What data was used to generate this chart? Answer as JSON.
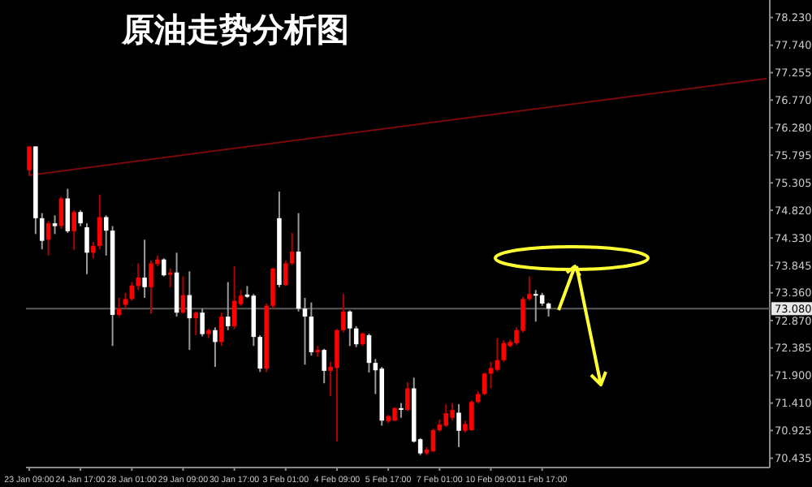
{
  "chart_data": {
    "type": "candlestick",
    "title": "原油走势分析图",
    "categories": [
      "23 Jan 09:00",
      null,
      null,
      null,
      null,
      null,
      null,
      null,
      "24 Jan 17:00",
      null,
      null,
      null,
      null,
      null,
      null,
      null,
      "28 Jan 01:00",
      null,
      null,
      null,
      null,
      null,
      null,
      null,
      "29 Jan 09:00",
      null,
      null,
      null,
      null,
      null,
      null,
      null,
      "30 Jan 17:00",
      null,
      null,
      null,
      null,
      null,
      null,
      null,
      "3 Feb 01:00",
      null,
      null,
      null,
      null,
      null,
      null,
      null,
      "4 Feb 09:00",
      null,
      null,
      null,
      null,
      null,
      null,
      null,
      "5 Feb 17:00",
      null,
      null,
      null,
      null,
      null,
      null,
      null,
      "7 Feb 01:00",
      null,
      null,
      null,
      null,
      null,
      null,
      null,
      "10 Feb 09:00",
      null,
      null,
      null,
      null,
      null,
      null,
      null,
      "11 Feb 17:00",
      null,
      null,
      null,
      null,
      null,
      null,
      null,
      null,
      null,
      null,
      null,
      null,
      null,
      null,
      null,
      null,
      null,
      null,
      null,
      null,
      null,
      null,
      null,
      null,
      null,
      null,
      null,
      null,
      null,
      null,
      null,
      null,
      null,
      null,
      null
    ],
    "ohlc": [
      [
        75.53,
        75.95,
        75.43,
        75.95
      ],
      [
        75.95,
        75.95,
        74.4,
        74.68
      ],
      [
        74.68,
        74.77,
        74.13,
        74.28
      ],
      [
        74.3,
        74.63,
        74.02,
        74.59
      ],
      [
        74.59,
        74.73,
        74.4,
        74.54
      ],
      [
        74.54,
        75.06,
        74.49,
        75.03
      ],
      [
        75.03,
        75.2,
        74.42,
        74.45
      ],
      [
        74.45,
        74.82,
        74.12,
        74.79
      ],
      [
        74.79,
        74.82,
        74.54,
        74.59
      ],
      [
        74.52,
        74.59,
        73.69,
        74.07
      ],
      [
        74.07,
        74.26,
        73.97,
        74.19
      ],
      [
        74.19,
        75.1,
        74.13,
        74.7
      ],
      [
        74.7,
        74.73,
        74.02,
        74.46
      ],
      [
        74.46,
        74.54,
        72.42,
        72.97
      ],
      [
        72.97,
        73.27,
        72.94,
        73.08
      ],
      [
        73.15,
        73.36,
        73.08,
        73.25
      ],
      [
        73.25,
        73.55,
        73.22,
        73.49
      ],
      [
        73.48,
        73.88,
        73.41,
        73.63
      ],
      [
        73.63,
        74.3,
        73.27,
        73.46
      ],
      [
        73.46,
        73.93,
        72.99,
        73.88
      ],
      [
        73.87,
        74.02,
        73.83,
        73.95
      ],
      [
        73.95,
        73.97,
        73.65,
        73.67
      ],
      [
        73.68,
        73.79,
        73.46,
        73.72
      ],
      [
        73.72,
        74.07,
        72.94,
        73.01
      ],
      [
        73.01,
        73.65,
        72.99,
        73.32
      ],
      [
        73.32,
        73.74,
        72.35,
        72.91
      ],
      [
        72.91,
        73.03,
        72.61,
        73.01
      ],
      [
        73.01,
        73.08,
        72.59,
        72.63
      ],
      [
        72.63,
        72.72,
        72.56,
        72.7
      ],
      [
        72.7,
        72.75,
        72.05,
        72.49
      ],
      [
        72.49,
        73.01,
        72.42,
        72.94
      ],
      [
        72.94,
        73.55,
        72.7,
        72.77
      ],
      [
        72.77,
        73.83,
        72.72,
        73.22
      ],
      [
        73.16,
        73.41,
        73.13,
        73.31
      ],
      [
        73.33,
        73.48,
        73.27,
        73.29
      ],
      [
        73.31,
        73.34,
        72.42,
        72.58
      ],
      [
        72.58,
        72.61,
        71.96,
        72.02
      ],
      [
        72.02,
        73.17,
        71.96,
        73.13
      ],
      [
        73.13,
        73.81,
        73.08,
        73.79
      ],
      [
        74.68,
        75.15,
        73.46,
        73.5
      ],
      [
        73.5,
        73.93,
        73.48,
        73.88
      ],
      [
        73.88,
        74.42,
        73.85,
        74.09
      ],
      [
        74.09,
        74.77,
        73.03,
        73.08
      ],
      [
        73.08,
        73.27,
        72.09,
        72.94
      ],
      [
        72.94,
        73.19,
        72.25,
        72.31
      ],
      [
        72.31,
        72.42,
        72.23,
        72.35
      ],
      [
        72.35,
        72.37,
        71.76,
        71.98
      ],
      [
        71.98,
        72.14,
        71.53,
        72.05
      ],
      [
        72.03,
        72.72,
        70.73,
        72.7
      ],
      [
        72.7,
        73.34,
        72.66,
        73.03
      ],
      [
        73.03,
        73.05,
        72.42,
        72.73
      ],
      [
        72.73,
        72.77,
        72.4,
        72.45
      ],
      [
        72.45,
        72.66,
        72.42,
        72.64
      ],
      [
        72.61,
        72.64,
        71.95,
        72.12
      ],
      [
        72.12,
        72.19,
        71.57,
        71.99
      ],
      [
        72.02,
        72.05,
        71.01,
        71.1
      ],
      [
        71.09,
        71.2,
        71.06,
        71.18
      ],
      [
        71.1,
        71.34,
        71.09,
        71.32
      ],
      [
        71.32,
        71.41,
        71.15,
        71.29
      ],
      [
        71.29,
        71.78,
        71.27,
        71.67
      ],
      [
        71.67,
        71.86,
        70.71,
        70.73
      ],
      [
        70.77,
        70.79,
        70.49,
        70.52
      ],
      [
        70.52,
        70.63,
        70.49,
        70.59
      ],
      [
        70.56,
        70.96,
        70.54,
        70.93
      ],
      [
        70.93,
        71.12,
        70.9,
        71.03
      ],
      [
        71.01,
        71.39,
        70.99,
        71.23
      ],
      [
        71.15,
        71.41,
        71.1,
        71.29
      ],
      [
        71.24,
        71.39,
        70.63,
        70.92
      ],
      [
        70.92,
        71.1,
        70.89,
        71.04
      ],
      [
        70.93,
        71.46,
        70.92,
        71.43
      ],
      [
        71.43,
        71.62,
        71.4,
        71.57
      ],
      [
        71.57,
        71.95,
        71.55,
        71.93
      ],
      [
        71.93,
        72.14,
        71.67,
        72.03
      ],
      [
        72.0,
        72.56,
        71.97,
        72.17
      ],
      [
        72.17,
        72.52,
        72.14,
        72.47
      ],
      [
        72.42,
        72.53,
        72.4,
        72.49
      ],
      [
        72.47,
        72.75,
        72.44,
        72.7
      ],
      [
        72.69,
        73.29,
        72.66,
        73.25
      ],
      [
        73.25,
        73.65,
        73.22,
        73.34
      ],
      [
        73.34,
        73.41,
        72.85,
        73.31
      ],
      [
        73.32,
        73.36,
        73.13,
        73.17
      ],
      [
        73.17,
        73.19,
        72.94,
        73.08
      ],
      null,
      null,
      null,
      null,
      null,
      null,
      null,
      null,
      null,
      null,
      null,
      null,
      null,
      null,
      null,
      null,
      null,
      null,
      null,
      null,
      null,
      null,
      null,
      null,
      null,
      null,
      null,
      null,
      null,
      null,
      null,
      null,
      null,
      null
    ],
    "colors": [
      "#ff0000",
      "#ffffff",
      "#ffffff",
      "#ff0000",
      "#ffffff",
      "#ff0000",
      "#ffffff",
      "#ff0000",
      "#ffffff",
      "#ffffff",
      "#ff0000",
      "#ff0000",
      "#ffffff",
      "#ffffff",
      "#ff0000",
      "#ff0000",
      "#ff0000",
      "#ff0000",
      "#ffffff",
      "#ff0000",
      "#ff0000",
      "#ffffff",
      "#ff0000",
      "#ffffff",
      "#ff0000",
      "#ffffff",
      "#ff0000",
      "#ffffff",
      "#ff0000",
      "#ffffff",
      "#ff0000",
      "#ffffff",
      "#ff0000",
      "#ff0000",
      "#ffffff",
      "#ffffff",
      "#ffffff",
      "#ff0000",
      "#ff0000",
      "#ffffff",
      "#ff0000",
      "#ff0000",
      "#ffffff",
      "#ffffff",
      "#ffffff",
      "#ff0000",
      "#ffffff",
      "#ff0000",
      "#ff0000",
      "#ff0000",
      "#ffffff",
      "#ffffff",
      "#ff0000",
      "#ffffff",
      "#ffffff",
      "#ffffff",
      "#ff0000",
      "#ff0000",
      "#ffffff",
      "#ff0000",
      "#ffffff",
      "#ffffff",
      "#ff0000",
      "#ff0000",
      "#ff0000",
      "#ff0000",
      "#ff0000",
      "#ffffff",
      "#ff0000",
      "#ff0000",
      "#ff0000",
      "#ff0000",
      "#ff0000",
      "#ff0000",
      "#ff0000",
      "#ff0000",
      "#ff0000",
      "#ff0000",
      "#ff0000",
      "#ffffff",
      "#ffffff",
      "#ffffff",
      null,
      null,
      null,
      null,
      null,
      null,
      null,
      null,
      null,
      null,
      null,
      null,
      null,
      null,
      null,
      null,
      null,
      null,
      null,
      null,
      null,
      null,
      null,
      null,
      null,
      null,
      null,
      null,
      null,
      null,
      null,
      null,
      null,
      null
    ],
    "series": [
      {
        "type": "line",
        "color": "#7a0a0a",
        "values": [
          75.44,
          null,
          null,
          null,
          null,
          null,
          null,
          null,
          null,
          null,
          null,
          null,
          null,
          null,
          null,
          null,
          null,
          null,
          null,
          null,
          null,
          null,
          null,
          null,
          null,
          null,
          null,
          null,
          null,
          null,
          null,
          null,
          null,
          null,
          null,
          null,
          null,
          null,
          null,
          null,
          null,
          null,
          null,
          null,
          null,
          null,
          null,
          null,
          null,
          null,
          null,
          null,
          null,
          null,
          null,
          null,
          null,
          null,
          null,
          null,
          null,
          null,
          null,
          null,
          null,
          null,
          null,
          null,
          null,
          null,
          null,
          null,
          null,
          null,
          null,
          null,
          null,
          null,
          null,
          null,
          null,
          null,
          null,
          null,
          null,
          null,
          null,
          null,
          null,
          null,
          null,
          null,
          null,
          null,
          null,
          null,
          null,
          null,
          null,
          null,
          null,
          null,
          null,
          null,
          null,
          null,
          null,
          null,
          null,
          null,
          null,
          null,
          null,
          null,
          null,
          77.15
        ]
      }
    ],
    "ref_lines": [
      {
        "axis": "y",
        "value": 73.08,
        "label": "73.080",
        "color": "#5a5a5a"
      }
    ],
    "ylim": [
      70.27,
      78.54
    ],
    "yticks": [
      {
        "value": 78.23,
        "label": "78.230"
      },
      {
        "value": 77.74,
        "label": "77.740"
      },
      {
        "value": 77.255,
        "label": "77.255"
      },
      {
        "value": 76.77,
        "label": "76.770"
      },
      {
        "value": 76.28,
        "label": "76.280"
      },
      {
        "value": 75.795,
        "label": "75.795"
      },
      {
        "value": 75.305,
        "label": "75.305"
      },
      {
        "value": 74.82,
        "label": "74.820"
      },
      {
        "value": 74.33,
        "label": "74.330"
      },
      {
        "value": 73.845,
        "label": "73.845"
      },
      {
        "value": 73.36,
        "label": "73.360"
      },
      {
        "value": 72.87,
        "label": "72.870"
      },
      {
        "value": 72.385,
        "label": "72.385"
      },
      {
        "value": 71.9,
        "label": "71.900"
      },
      {
        "value": 71.41,
        "label": "71.410"
      },
      {
        "value": 70.925,
        "label": "70.925"
      },
      {
        "value": 70.435,
        "label": "70.435"
      }
    ]
  }
}
